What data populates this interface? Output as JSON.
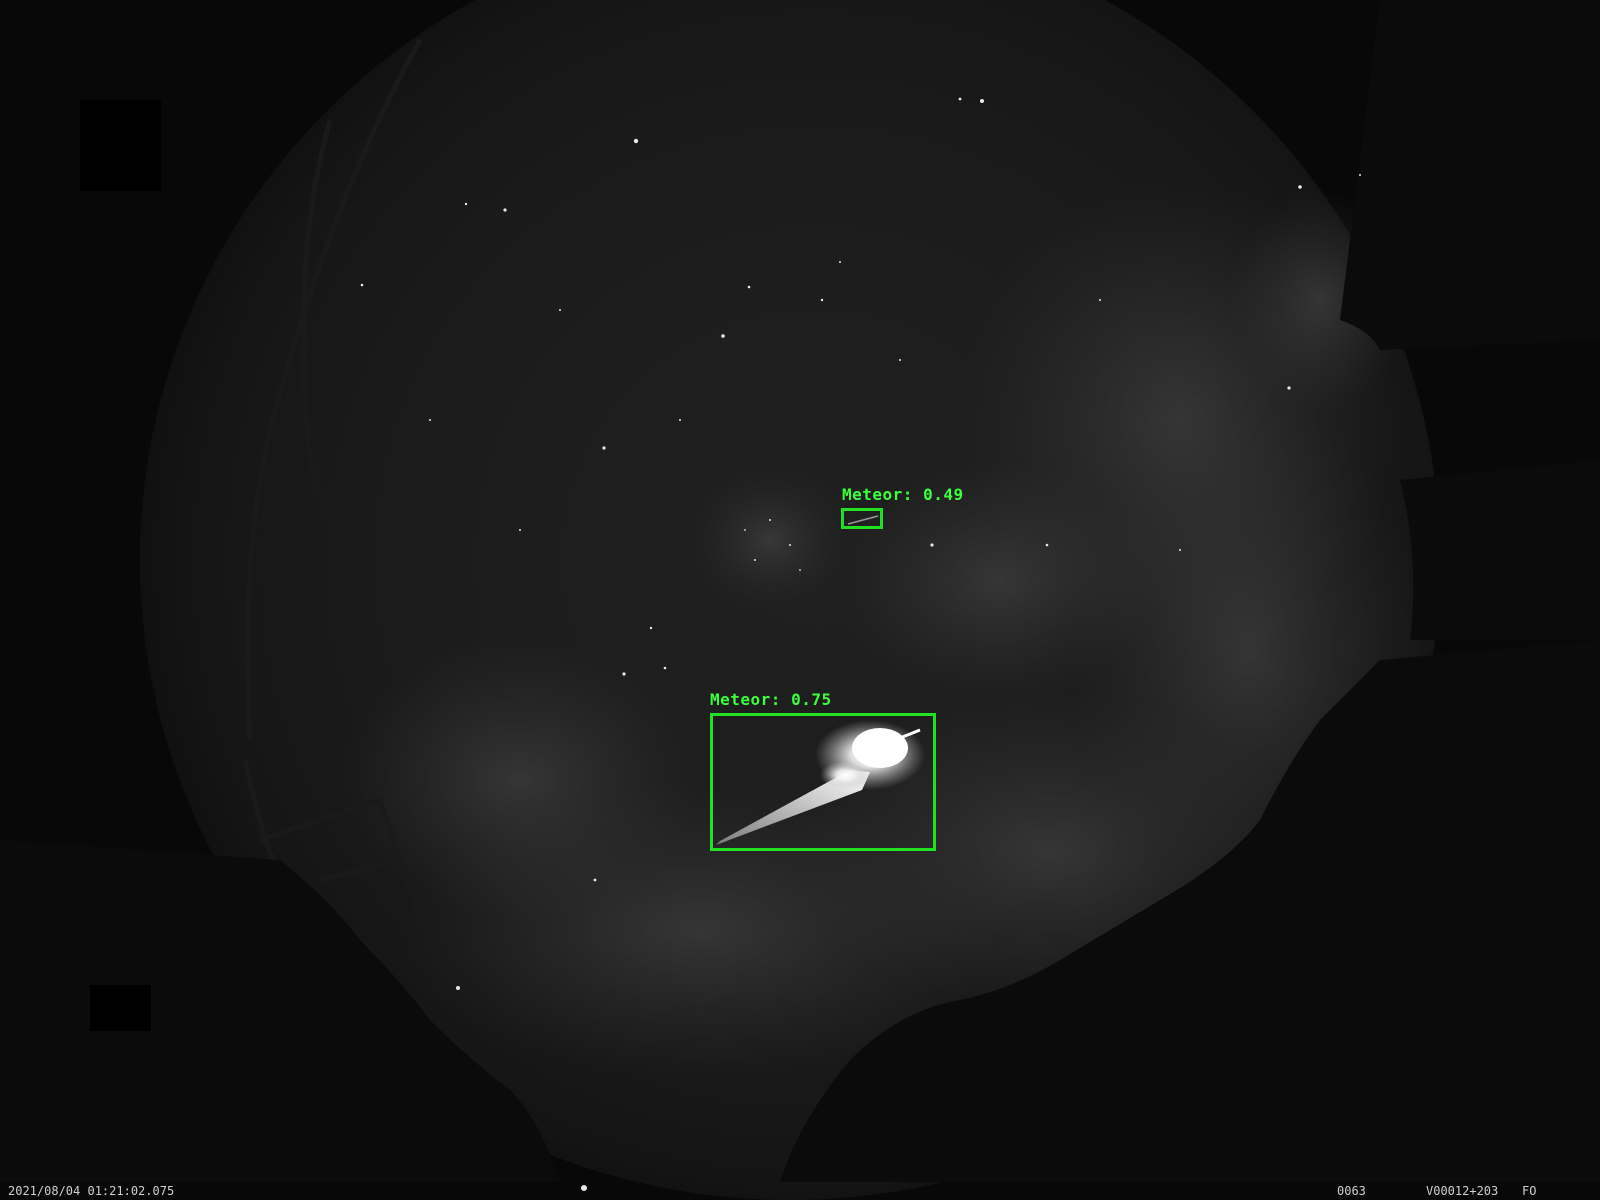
{
  "detections": [
    {
      "label": "Meteor: 0.49"
    },
    {
      "label": "Meteor: 0.75"
    }
  ],
  "overlay": {
    "timestamp": "2021/08/04 01:21:02.075",
    "frame_number": "0063",
    "camera_code": "V00012+203",
    "flag": "FO"
  },
  "colors": {
    "detection_box": "#22e022",
    "detection_text": "#3cff3c",
    "overlay_text": "#cfcfcf",
    "sky": "#1e1e1e",
    "background": "#080808"
  }
}
